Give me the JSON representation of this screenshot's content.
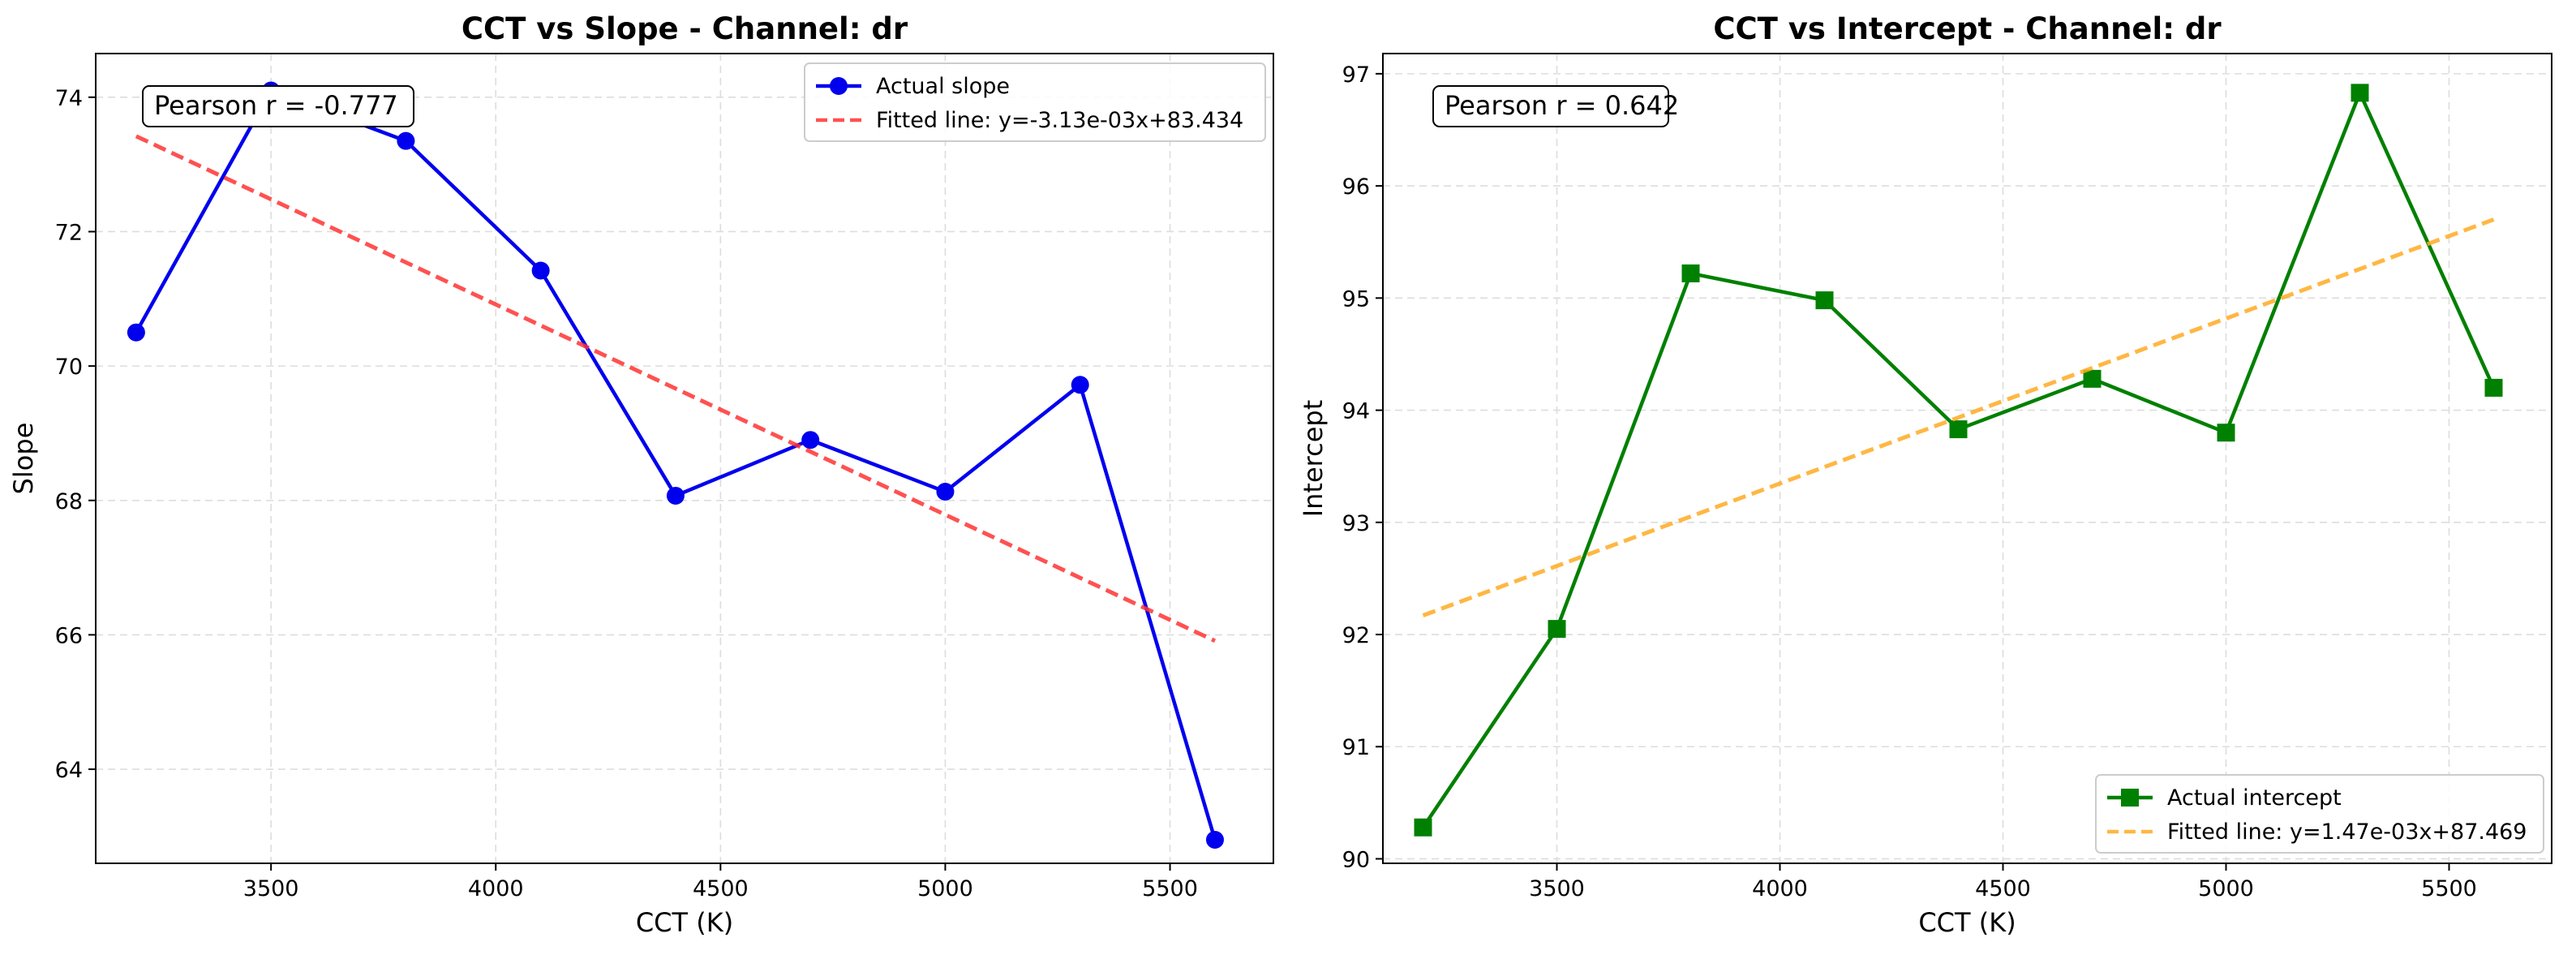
{
  "chart_data": [
    {
      "type": "line",
      "title": "CCT vs Slope - Channel: dr",
      "xlabel": "CCT (K)",
      "ylabel": "Slope",
      "xlim": [
        3110,
        5730
      ],
      "ylim": [
        62.6,
        74.65
      ],
      "xticks": [
        3500,
        4000,
        4500,
        5000,
        5500
      ],
      "yticks": [
        64,
        66,
        68,
        70,
        72,
        74
      ],
      "grid": true,
      "legend_position": "upper right",
      "annotation": "Pearson r = -0.777",
      "x": [
        3200,
        3500,
        3800,
        4100,
        4400,
        4700,
        5000,
        5300,
        5600
      ],
      "series": [
        {
          "name": "Actual slope",
          "color": "#0000ee",
          "style": "solid",
          "marker": "circle",
          "values": [
            70.5,
            74.1,
            73.35,
            71.42,
            68.07,
            68.9,
            68.13,
            69.72,
            62.95
          ]
        },
        {
          "name": "Fitted line: y=-3.13e-03x+83.434",
          "color": "#ff3333",
          "style": "dashed",
          "marker": "none",
          "x": [
            3200,
            5600
          ],
          "values": [
            73.42,
            65.91
          ]
        }
      ]
    },
    {
      "type": "line",
      "title": "CCT vs Intercept - Channel: dr",
      "xlabel": "CCT (K)",
      "ylabel": "Intercept",
      "xlim": [
        3110,
        5730
      ],
      "ylim": [
        89.96,
        97.18
      ],
      "xticks": [
        3500,
        4000,
        4500,
        5000,
        5500
      ],
      "yticks": [
        90,
        91,
        92,
        93,
        94,
        95,
        96,
        97
      ],
      "grid": true,
      "legend_position": "lower right",
      "annotation": "Pearson r = 0.642",
      "x": [
        3200,
        3500,
        3800,
        4100,
        4400,
        4700,
        5000,
        5300,
        5600
      ],
      "series": [
        {
          "name": "Actual intercept",
          "color": "#008000",
          "style": "solid",
          "marker": "square",
          "values": [
            90.28,
            92.05,
            95.22,
            94.98,
            93.83,
            94.28,
            93.8,
            96.83,
            94.2
          ]
        },
        {
          "name": "Fitted line: y=1.47e-03x+87.469",
          "color": "#ffaa22",
          "style": "dashed",
          "marker": "none",
          "x": [
            3200,
            5600
          ],
          "values": [
            92.17,
            95.7
          ]
        }
      ]
    }
  ]
}
